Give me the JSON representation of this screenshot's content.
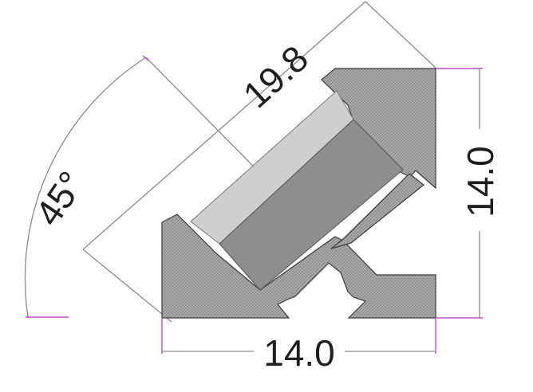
{
  "dimensions": {
    "angle": "45°",
    "diagonal": "19.8",
    "height": "14.0",
    "width": "14.0"
  },
  "colors": {
    "profile_fill": "#9a9a9a",
    "diffuser_light": "#cfcfcf",
    "diffuser_dark": "#8e8e8e",
    "extension_lines": "#c04fc9",
    "dimension_lines": "#8a8a8a"
  }
}
